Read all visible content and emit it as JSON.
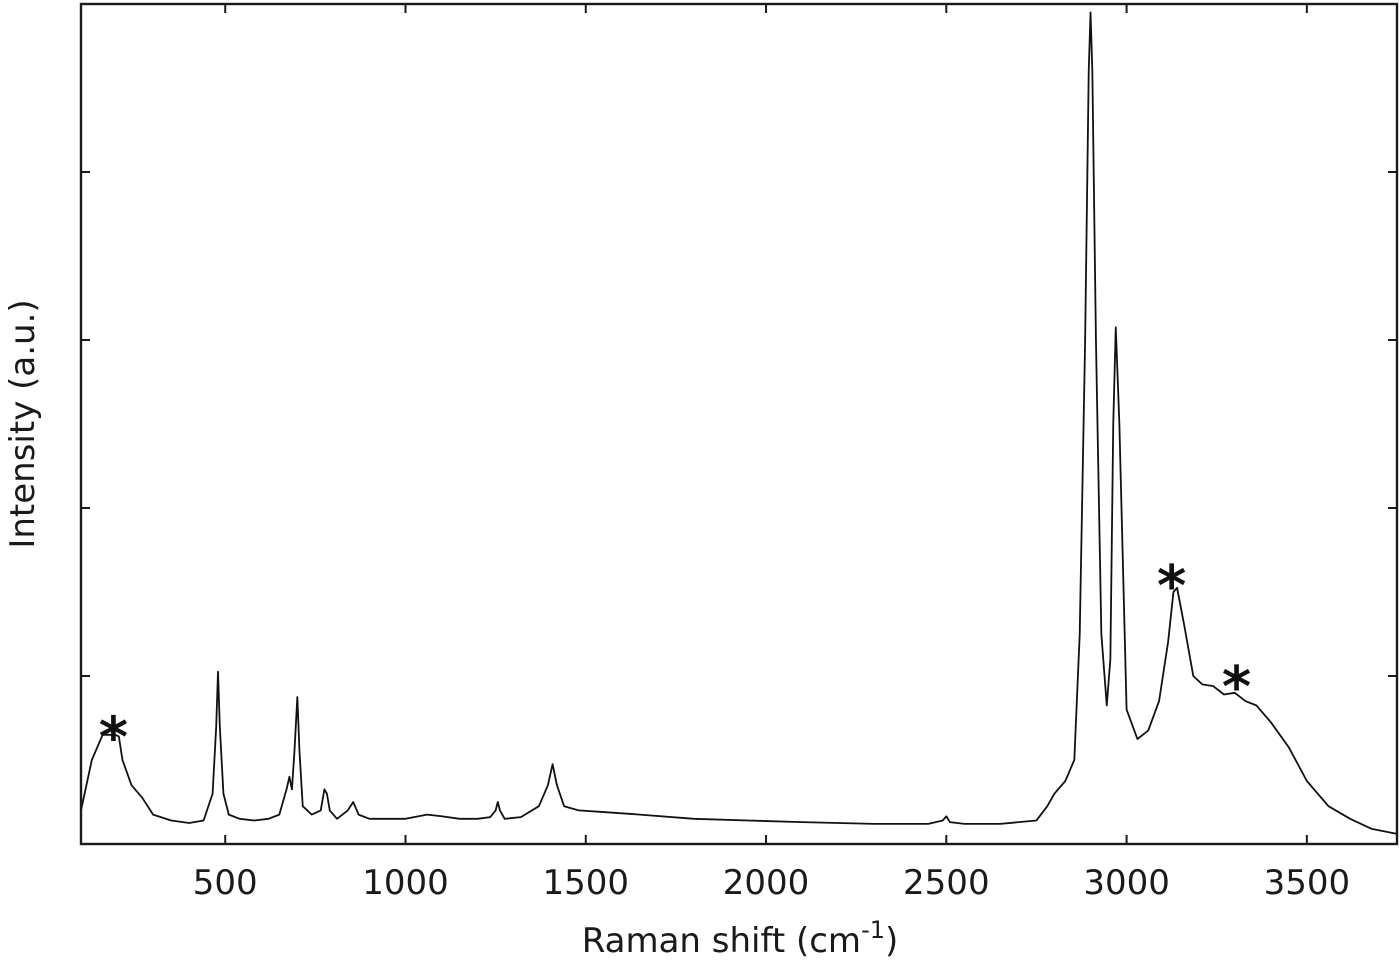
{
  "chart_data": {
    "type": "line",
    "title": "",
    "xlabel": "Raman shift (cm",
    "xlabel_superscript": "-1",
    "xlabel_suffix": ")",
    "ylabel": "Intensity (a.u.)",
    "xlim": [
      100,
      3750
    ],
    "ylim": [
      0,
      1
    ],
    "grid": false,
    "x_ticks": [
      500,
      1000,
      1500,
      2000,
      2500,
      3000,
      3500
    ],
    "x_tick_labels": [
      "500",
      "1000",
      "1500",
      "2000",
      "2500",
      "3000",
      "3500"
    ],
    "y_ticks": [
      0.2,
      0.4,
      0.6,
      0.8
    ],
    "y_tick_labels": [],
    "line_color": "#111111",
    "series": [
      {
        "x": [
          100,
          130,
          160,
          180,
          195,
          205,
          215,
          240,
          270,
          300,
          350,
          400,
          440,
          465,
          475,
          480,
          485,
          495,
          510,
          540,
          580,
          620,
          650,
          670,
          678,
          685,
          692,
          700,
          706,
          715,
          740,
          765,
          775,
          782,
          790,
          810,
          840,
          855,
          870,
          900,
          950,
          1000,
          1060,
          1100,
          1150,
          1200,
          1235,
          1250,
          1256,
          1262,
          1275,
          1320,
          1370,
          1395,
          1408,
          1420,
          1440,
          1480,
          1550,
          1650,
          1800,
          1950,
          2100,
          2300,
          2450,
          2490,
          2500,
          2510,
          2550,
          2650,
          2750,
          2780,
          2800,
          2830,
          2855,
          2870,
          2885,
          2895,
          2900,
          2905,
          2915,
          2930,
          2945,
          2955,
          2963,
          2970,
          2980,
          3000,
          3030,
          3060,
          3090,
          3115,
          3130,
          3140,
          3160,
          3185,
          3210,
          3240,
          3270,
          3300,
          3330,
          3360,
          3400,
          3450,
          3500,
          3560,
          3620,
          3680,
          3750
        ],
        "y": [
          0.04,
          0.1,
          0.13,
          0.13,
          0.13,
          0.128,
          0.1,
          0.07,
          0.055,
          0.035,
          0.028,
          0.025,
          0.028,
          0.06,
          0.14,
          0.205,
          0.14,
          0.06,
          0.035,
          0.03,
          0.028,
          0.03,
          0.035,
          0.065,
          0.08,
          0.065,
          0.11,
          0.175,
          0.11,
          0.045,
          0.035,
          0.04,
          0.065,
          0.06,
          0.04,
          0.03,
          0.04,
          0.05,
          0.035,
          0.03,
          0.03,
          0.03,
          0.035,
          0.033,
          0.03,
          0.03,
          0.032,
          0.04,
          0.05,
          0.04,
          0.03,
          0.032,
          0.045,
          0.07,
          0.095,
          0.07,
          0.045,
          0.04,
          0.038,
          0.035,
          0.03,
          0.028,
          0.026,
          0.024,
          0.024,
          0.028,
          0.033,
          0.026,
          0.024,
          0.024,
          0.028,
          0.045,
          0.06,
          0.075,
          0.1,
          0.25,
          0.6,
          0.92,
          0.99,
          0.92,
          0.6,
          0.25,
          0.165,
          0.22,
          0.5,
          0.615,
          0.5,
          0.16,
          0.125,
          0.135,
          0.17,
          0.24,
          0.3,
          0.305,
          0.26,
          0.2,
          0.19,
          0.188,
          0.178,
          0.18,
          0.17,
          0.165,
          0.145,
          0.115,
          0.075,
          0.045,
          0.03,
          0.018,
          0.012
        ]
      }
    ],
    "annotations": [
      {
        "text": "*",
        "x": 190,
        "y": 0.14
      },
      {
        "text": "*",
        "x": 3125,
        "y": 0.32
      },
      {
        "text": "*",
        "x": 3305,
        "y": 0.2
      }
    ]
  }
}
